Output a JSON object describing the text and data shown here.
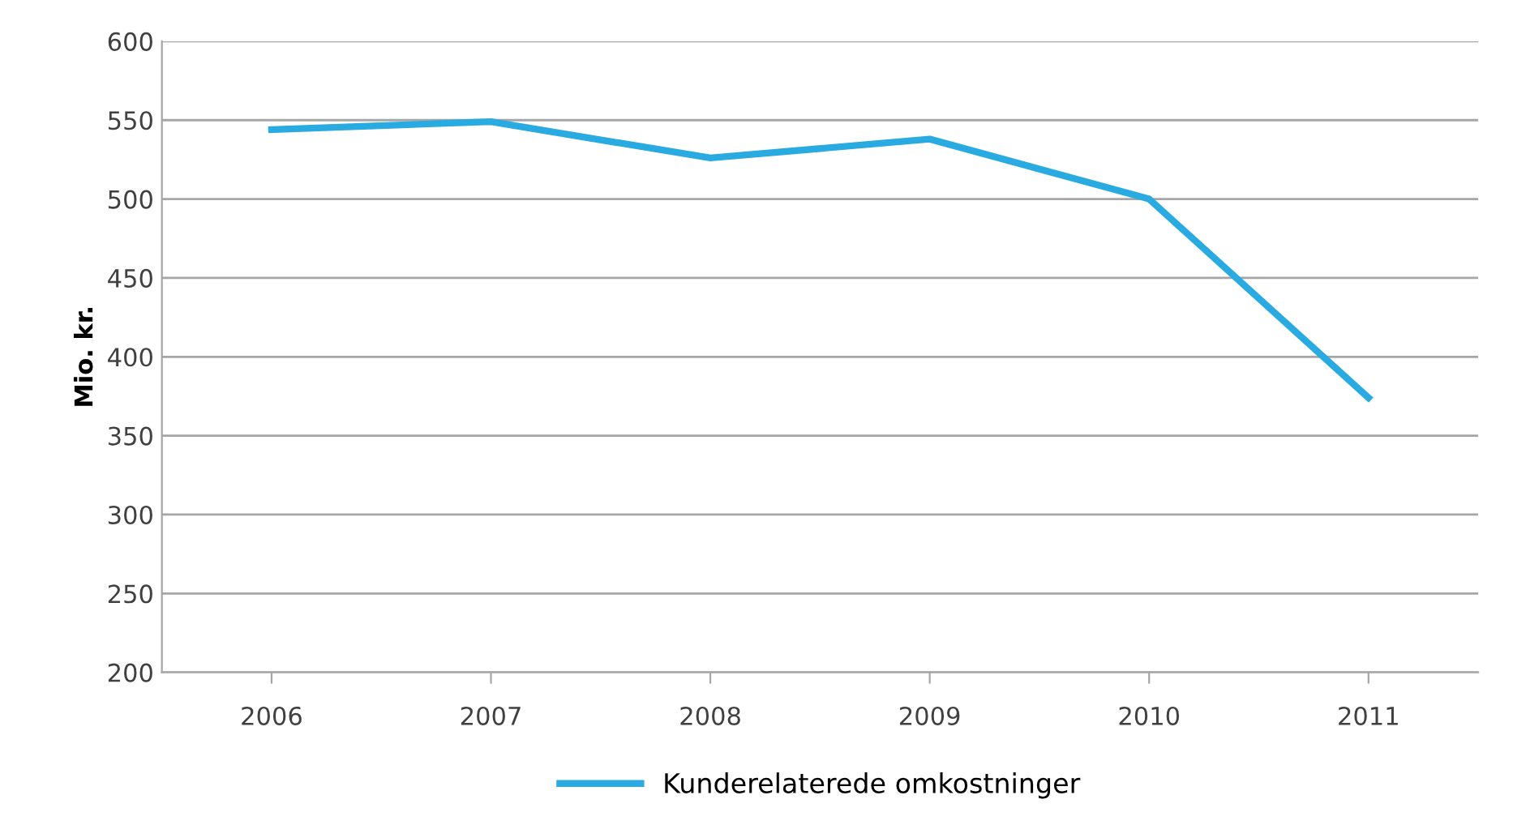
{
  "chart_data": {
    "type": "line",
    "ylabel": "Mio. kr.",
    "categories": [
      "2006",
      "2007",
      "2008",
      "2009",
      "2010",
      "2011"
    ],
    "series": [
      {
        "name": "Kunderelaterede omkostninger",
        "color": "#29abe2",
        "values": [
          544,
          549,
          526,
          538,
          500,
          374
        ]
      }
    ],
    "ylim": [
      200,
      600
    ],
    "yticks": [
      200,
      250,
      300,
      350,
      400,
      450,
      500,
      550,
      600
    ],
    "grid": "y",
    "legend": "bottom",
    "marker": "none",
    "line_style": "solid"
  }
}
